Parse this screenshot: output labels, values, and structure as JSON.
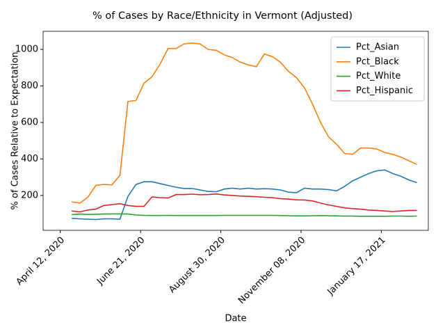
{
  "chart_data": {
    "type": "line",
    "title": "% of Cases by Race/Ethnicity in Vermont (Adjusted)",
    "xlabel": "Date",
    "ylabel": "% of Cases Relative to Expectation",
    "x": [
      "2020-04-22",
      "2020-04-29",
      "2020-05-06",
      "2020-05-13",
      "2020-05-20",
      "2020-05-27",
      "2020-06-03",
      "2020-06-10",
      "2020-06-17",
      "2020-06-24",
      "2020-07-01",
      "2020-07-08",
      "2020-07-15",
      "2020-07-22",
      "2020-07-29",
      "2020-08-05",
      "2020-08-12",
      "2020-08-19",
      "2020-08-26",
      "2020-09-02",
      "2020-09-09",
      "2020-09-16",
      "2020-09-23",
      "2020-09-30",
      "2020-10-07",
      "2020-10-14",
      "2020-10-21",
      "2020-10-28",
      "2020-11-04",
      "2020-11-11",
      "2020-11-18",
      "2020-11-25",
      "2020-12-02",
      "2020-12-09",
      "2020-12-16",
      "2020-12-23",
      "2020-12-30",
      "2021-01-06",
      "2021-01-13",
      "2021-01-20",
      "2021-01-27",
      "2021-02-03",
      "2021-02-10",
      "2021-02-17"
    ],
    "series": [
      {
        "name": "Pct_Asian",
        "color": "#1f77b4",
        "values": [
          75,
          72,
          70,
          68,
          72,
          72,
          70,
          195,
          260,
          275,
          275,
          265,
          255,
          245,
          238,
          238,
          230,
          222,
          220,
          235,
          240,
          235,
          240,
          235,
          237,
          235,
          230,
          218,
          215,
          240,
          235,
          235,
          232,
          225,
          250,
          280,
          300,
          320,
          335,
          340,
          320,
          305,
          285,
          270
        ]
      },
      {
        "name": "Pct_Black",
        "color": "#ff7f0e",
        "values": [
          165,
          158,
          190,
          255,
          260,
          258,
          310,
          715,
          720,
          815,
          850,
          920,
          1005,
          1005,
          1030,
          1035,
          1030,
          1000,
          995,
          970,
          955,
          930,
          915,
          905,
          975,
          960,
          930,
          880,
          845,
          790,
          700,
          600,
          520,
          480,
          430,
          425,
          460,
          460,
          455,
          435,
          425,
          410,
          390,
          370
        ]
      },
      {
        "name": "Pct_White",
        "color": "#2ca02c",
        "values": [
          95,
          98,
          96,
          97,
          98,
          99,
          99,
          98,
          93,
          91,
          90,
          90,
          91,
          90,
          90,
          90,
          90,
          90,
          90,
          91,
          91,
          91,
          91,
          91,
          91,
          91,
          90,
          89,
          88,
          88,
          89,
          90,
          89,
          88,
          87,
          87,
          86,
          86,
          86,
          86,
          87,
          87,
          86,
          87
        ]
      },
      {
        "name": "Pct_Hispanic",
        "color": "#d62728",
        "values": [
          115,
          110,
          120,
          125,
          145,
          150,
          155,
          145,
          140,
          140,
          192,
          188,
          186,
          205,
          205,
          207,
          204,
          205,
          208,
          203,
          200,
          197,
          195,
          193,
          190,
          188,
          182,
          180,
          176,
          175,
          170,
          158,
          148,
          140,
          132,
          128,
          125,
          120,
          118,
          115,
          112,
          115,
          118,
          118
        ]
      }
    ],
    "xlim": [
      "2020-03-28",
      "2021-02-27"
    ],
    "xticks": [
      {
        "value": "2020-04-12",
        "label": "April 12, 2020"
      },
      {
        "value": "2020-06-21",
        "label": "June 21, 2020"
      },
      {
        "value": "2020-08-30",
        "label": "August 30, 2020"
      },
      {
        "value": "2020-11-08",
        "label": "November 08, 2020"
      },
      {
        "value": "2021-01-17",
        "label": "January 17, 2021"
      }
    ],
    "ylim": [
      9,
      1099
    ],
    "yticks": [
      200,
      400,
      600,
      800,
      1000
    ],
    "legend": "upper right"
  }
}
